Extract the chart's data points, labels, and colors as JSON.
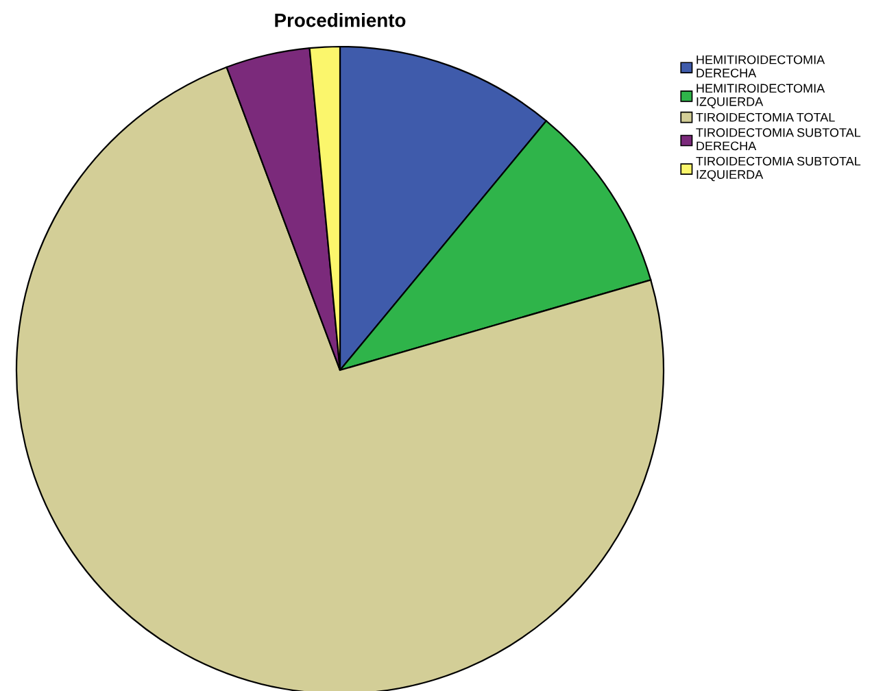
{
  "chart_data": {
    "type": "pie",
    "title": "Procedimiento",
    "categories": [
      "HEMITIROIDECTOMIA\nDERECHA",
      "HEMITIROIDECTOMIA\nIZQUIERDA",
      "TIROIDECTOMIA TOTAL",
      "TIROIDECTOMIA SUBTOTAL\nDERECHA",
      "TIROIDECTOMIA SUBTOTAL\nIZQUIERDA"
    ],
    "values": [
      11.0,
      9.5,
      73.8,
      4.2,
      1.5
    ],
    "colors": [
      "#3f5bab",
      "#2fb44a",
      "#d3ce97",
      "#7b2a7b",
      "#fbf66c"
    ],
    "legend": "top right"
  }
}
